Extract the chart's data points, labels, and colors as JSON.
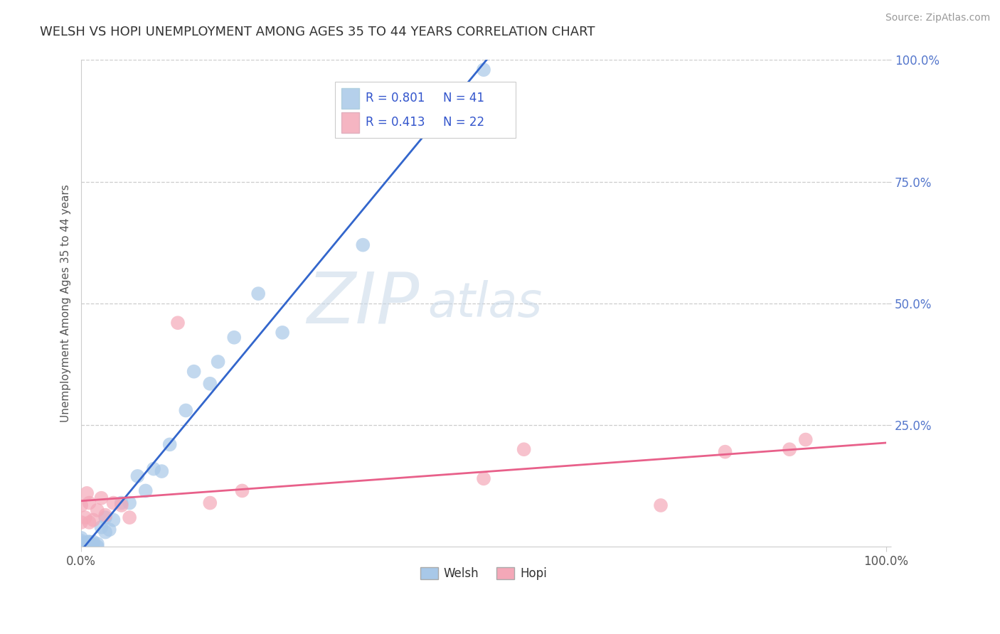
{
  "title": "WELSH VS HOPI UNEMPLOYMENT AMONG AGES 35 TO 44 YEARS CORRELATION CHART",
  "source": "Source: ZipAtlas.com",
  "ylabel": "Unemployment Among Ages 35 to 44 years",
  "xlim": [
    0,
    1.0
  ],
  "ylim": [
    0,
    1.0
  ],
  "welsh_R": "0.801",
  "welsh_N": "41",
  "hopi_R": "0.413",
  "hopi_N": "22",
  "welsh_scatter_color": "#a8c8e8",
  "hopi_scatter_color": "#f4a8b8",
  "welsh_line_color": "#3366cc",
  "hopi_line_color": "#e8608a",
  "background_color": "#ffffff",
  "grid_color": "#cccccc",
  "watermark_zip": "ZIP",
  "watermark_atlas": "atlas",
  "title_color": "#333333",
  "legend_text_color": "#3355cc",
  "welsh_x": [
    0.0,
    0.0,
    0.0,
    0.0,
    0.0,
    0.003,
    0.003,
    0.005,
    0.005,
    0.007,
    0.008,
    0.009,
    0.01,
    0.01,
    0.01,
    0.01,
    0.015,
    0.015,
    0.02,
    0.02,
    0.025,
    0.03,
    0.03,
    0.035,
    0.04,
    0.05,
    0.06,
    0.07,
    0.08,
    0.09,
    0.1,
    0.11,
    0.13,
    0.14,
    0.16,
    0.17,
    0.19,
    0.22,
    0.25,
    0.35,
    0.5
  ],
  "welsh_y": [
    0.0,
    0.005,
    0.008,
    0.012,
    0.018,
    0.0,
    0.003,
    0.0,
    0.005,
    0.003,
    0.006,
    0.01,
    0.0,
    0.003,
    0.006,
    0.01,
    0.005,
    0.01,
    0.0,
    0.006,
    0.04,
    0.03,
    0.06,
    0.035,
    0.055,
    0.09,
    0.09,
    0.145,
    0.115,
    0.16,
    0.155,
    0.21,
    0.28,
    0.36,
    0.335,
    0.38,
    0.43,
    0.52,
    0.44,
    0.62,
    0.98
  ],
  "hopi_x": [
    0.0,
    0.0,
    0.005,
    0.007,
    0.01,
    0.01,
    0.015,
    0.02,
    0.025,
    0.03,
    0.04,
    0.05,
    0.06,
    0.12,
    0.16,
    0.2,
    0.5,
    0.55,
    0.72,
    0.8,
    0.88,
    0.9
  ],
  "hopi_y": [
    0.05,
    0.085,
    0.06,
    0.11,
    0.05,
    0.09,
    0.055,
    0.075,
    0.1,
    0.065,
    0.09,
    0.085,
    0.06,
    0.46,
    0.09,
    0.115,
    0.14,
    0.2,
    0.085,
    0.195,
    0.2,
    0.22
  ],
  "ytick_vals": [
    0.0,
    0.25,
    0.5,
    0.75,
    1.0
  ],
  "ytick_labels": [
    "0.0%",
    "25.0%",
    "50.0%",
    "75.0%",
    "100.0%"
  ]
}
